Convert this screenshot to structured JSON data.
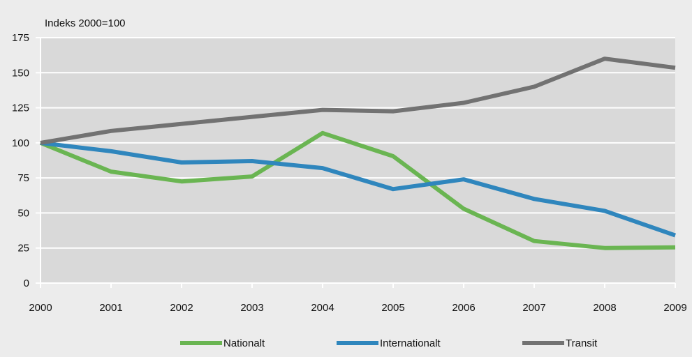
{
  "chart_data": {
    "type": "line",
    "title": "",
    "ylabel": "Indeks 2000=100",
    "xlabel": "",
    "x": [
      "2000",
      "2001",
      "2002",
      "2003",
      "2004",
      "2005",
      "2006",
      "2007",
      "2008",
      "2009"
    ],
    "ylim": [
      0,
      175
    ],
    "yticks": [
      "0",
      "25",
      "50",
      "75",
      "100",
      "125",
      "150",
      "175"
    ],
    "grid": true,
    "legend_position": "bottom",
    "series": [
      {
        "name": "Nationalt",
        "color": "#6ab552",
        "values": [
          100,
          79.5,
          72.5,
          76,
          107,
          90.5,
          53,
          30,
          25,
          25.5
        ]
      },
      {
        "name": "Internationalt",
        "color": "#2f86bd",
        "values": [
          100,
          94,
          86,
          87,
          82,
          67,
          74,
          60,
          51.5,
          34
        ]
      },
      {
        "name": "Transit",
        "color": "#727272",
        "values": [
          100,
          108.5,
          113.5,
          118.5,
          123.5,
          122.5,
          128.5,
          140,
          160,
          153.5
        ]
      }
    ]
  }
}
